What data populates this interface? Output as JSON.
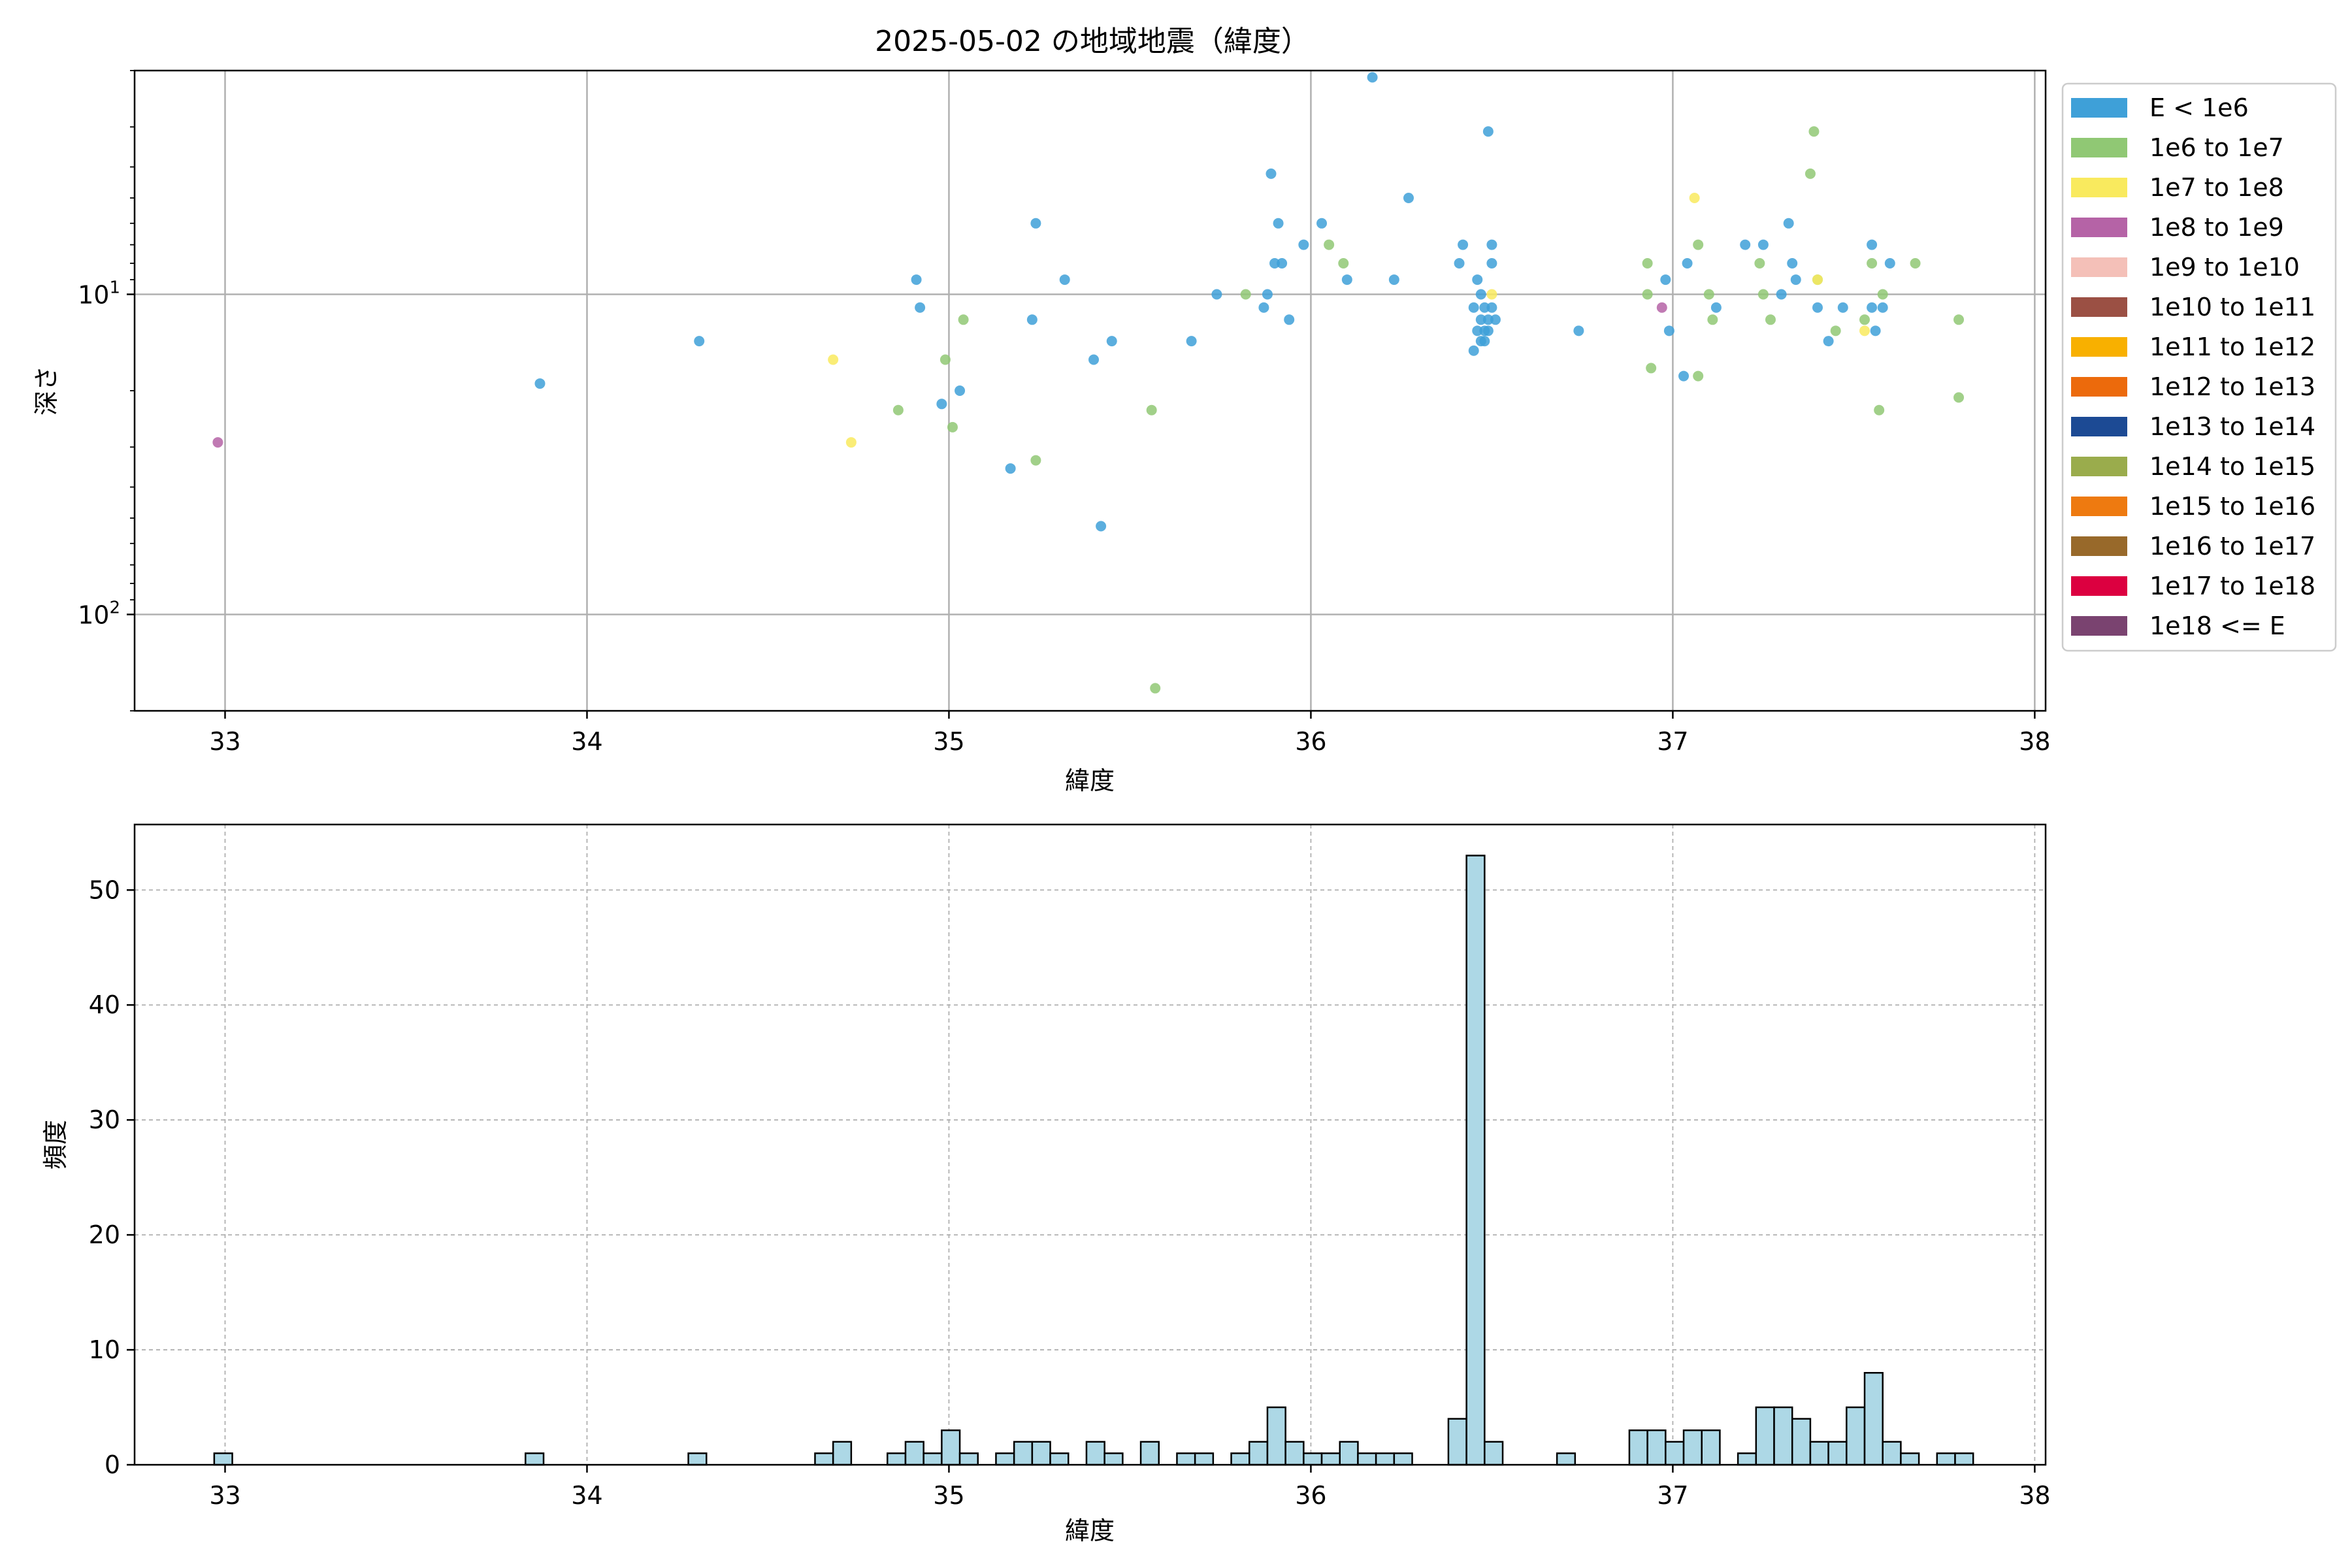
{
  "figure": {
    "title": "2025-05-02 の地域地震（緯度）"
  },
  "scatter_legend": [
    {
      "label": "E < 1e6",
      "color": "#3ea0d8"
    },
    {
      "label": "1e6 to 1e7",
      "color": "#90c874"
    },
    {
      "label": "1e7 to 1e8",
      "color": "#f9ea5e"
    },
    {
      "label": "1e8 to 1e9",
      "color": "#b563a6"
    },
    {
      "label": "1e9 to 1e10",
      "color": "#f4c0b8"
    },
    {
      "label": "1e10 to 1e11",
      "color": "#9b5044"
    },
    {
      "label": "1e11 to 1e12",
      "color": "#f8b000"
    },
    {
      "label": "1e12 to 1e13",
      "color": "#ec6a0c"
    },
    {
      "label": "1e13 to 1e14",
      "color": "#1c4a94"
    },
    {
      "label": "1e14 to 1e15",
      "color": "#9aac4c"
    },
    {
      "label": "1e15 to 1e16",
      "color": "#ee7a10"
    },
    {
      "label": "1e16 to 1e17",
      "color": "#98692a"
    },
    {
      "label": "1e17 to 1e18",
      "color": "#dc0040"
    },
    {
      "label": "1e18 <= E",
      "color": "#7a4370"
    }
  ],
  "chart_data": [
    {
      "type": "scatter",
      "title": "2025-05-02 の地域地震（緯度）",
      "xlabel": "緯度",
      "ylabel": "深さ",
      "xlim": [
        32.75,
        38.03
      ],
      "ylim_depth_inverted_log": [
        2,
        200
      ],
      "yscale": "log",
      "y_inverted": true,
      "grid": true,
      "legend_placement": "outside-right",
      "x_ticks": [
        33,
        34,
        35,
        36,
        37,
        38
      ],
      "y_ticks": [
        {
          "value": 10,
          "label": "10^1"
        },
        {
          "value": 100,
          "label": "10^2"
        }
      ],
      "series": [
        {
          "name": "E < 1e6",
          "color": "#3ea0d8",
          "points": [
            [
              33.87,
              19
            ],
            [
              34.31,
              14
            ],
            [
              34.91,
              9
            ],
            [
              34.92,
              11
            ],
            [
              34.98,
              22
            ],
            [
              35.03,
              20
            ],
            [
              35.17,
              35
            ],
            [
              35.23,
              12
            ],
            [
              35.24,
              6
            ],
            [
              35.32,
              9
            ],
            [
              35.4,
              16
            ],
            [
              35.42,
              53
            ],
            [
              35.45,
              14
            ],
            [
              35.67,
              14
            ],
            [
              35.74,
              10
            ],
            [
              35.87,
              11
            ],
            [
              35.88,
              10
            ],
            [
              35.89,
              4.2
            ],
            [
              35.9,
              8
            ],
            [
              35.91,
              6
            ],
            [
              35.92,
              8
            ],
            [
              35.94,
              12
            ],
            [
              35.98,
              7
            ],
            [
              36.03,
              6
            ],
            [
              36.1,
              9
            ],
            [
              36.17,
              2.1
            ],
            [
              36.23,
              9
            ],
            [
              36.27,
              5
            ],
            [
              36.41,
              8
            ],
            [
              36.42,
              7
            ],
            [
              36.45,
              11
            ],
            [
              36.46,
              9
            ],
            [
              36.47,
              10
            ],
            [
              36.47,
              12
            ],
            [
              36.48,
              11
            ],
            [
              36.48,
              13
            ],
            [
              36.48,
              14
            ],
            [
              36.49,
              12
            ],
            [
              36.49,
              13
            ],
            [
              36.49,
              3.1
            ],
            [
              36.5,
              7
            ],
            [
              36.5,
              8
            ],
            [
              36.5,
              11
            ],
            [
              36.51,
              12
            ],
            [
              36.45,
              15
            ],
            [
              36.46,
              13
            ],
            [
              36.47,
              14
            ],
            [
              36.74,
              13
            ],
            [
              36.98,
              9
            ],
            [
              36.99,
              13
            ],
            [
              37.03,
              18
            ],
            [
              37.04,
              8
            ],
            [
              37.12,
              11
            ],
            [
              37.2,
              7
            ],
            [
              37.25,
              7
            ],
            [
              37.3,
              10
            ],
            [
              37.32,
              6
            ],
            [
              37.33,
              8
            ],
            [
              37.34,
              9
            ],
            [
              37.4,
              11
            ],
            [
              37.43,
              14
            ],
            [
              37.47,
              11
            ],
            [
              37.55,
              7
            ],
            [
              37.55,
              11
            ],
            [
              37.56,
              13
            ],
            [
              37.58,
              11
            ],
            [
              37.6,
              8
            ]
          ]
        },
        {
          "name": "1e6 to 1e7",
          "color": "#90c874",
          "points": [
            [
              34.86,
              23
            ],
            [
              34.99,
              16
            ],
            [
              35.01,
              26
            ],
            [
              35.04,
              12
            ],
            [
              35.24,
              33
            ],
            [
              35.56,
              23
            ],
            [
              35.57,
              170
            ],
            [
              35.82,
              10
            ],
            [
              36.05,
              7
            ],
            [
              36.09,
              8
            ],
            [
              36.93,
              8
            ],
            [
              36.93,
              10
            ],
            [
              36.94,
              17
            ],
            [
              37.07,
              18
            ],
            [
              37.07,
              7
            ],
            [
              37.1,
              10
            ],
            [
              37.11,
              12
            ],
            [
              37.24,
              8
            ],
            [
              37.25,
              10
            ],
            [
              37.27,
              12
            ],
            [
              37.38,
              4.2
            ],
            [
              37.39,
              3.1
            ],
            [
              37.4,
              9
            ],
            [
              37.45,
              13
            ],
            [
              37.53,
              12
            ],
            [
              37.55,
              8
            ],
            [
              37.57,
              23
            ],
            [
              37.58,
              10
            ],
            [
              37.67,
              8
            ],
            [
              37.79,
              12
            ],
            [
              37.79,
              21
            ]
          ]
        },
        {
          "name": "1e7 to 1e8",
          "color": "#f9ea5e",
          "points": [
            [
              34.68,
              16
            ],
            [
              34.73,
              29
            ],
            [
              37.06,
              5
            ],
            [
              37.4,
              9
            ],
            [
              37.53,
              13
            ],
            [
              36.5,
              10
            ]
          ]
        },
        {
          "name": "1e8 to 1e9",
          "color": "#b563a6",
          "points": [
            [
              32.98,
              29
            ],
            [
              36.97,
              11
            ]
          ]
        }
      ]
    },
    {
      "type": "bar",
      "subtype": "histogram",
      "title": "",
      "xlabel": "緯度",
      "ylabel": "頻度",
      "xlim": [
        32.75,
        38.03
      ],
      "ylim": [
        0,
        55.7
      ],
      "grid": true,
      "grid_style": "dashed",
      "bar_color": "#add8e6",
      "x_ticks": [
        33,
        34,
        35,
        36,
        37,
        38
      ],
      "y_ticks": [
        0,
        10,
        20,
        30,
        40,
        50
      ],
      "bin_width": 0.05,
      "bins": [
        {
          "x0": 32.97,
          "count": 1
        },
        {
          "x0": 33.83,
          "count": 1
        },
        {
          "x0": 34.28,
          "count": 1
        },
        {
          "x0": 34.63,
          "count": 1
        },
        {
          "x0": 34.68,
          "count": 2
        },
        {
          "x0": 34.83,
          "count": 1
        },
        {
          "x0": 34.88,
          "count": 2
        },
        {
          "x0": 34.93,
          "count": 1
        },
        {
          "x0": 34.98,
          "count": 3
        },
        {
          "x0": 35.03,
          "count": 1
        },
        {
          "x0": 35.13,
          "count": 1
        },
        {
          "x0": 35.18,
          "count": 2
        },
        {
          "x0": 35.23,
          "count": 2
        },
        {
          "x0": 35.28,
          "count": 1
        },
        {
          "x0": 35.38,
          "count": 2
        },
        {
          "x0": 35.43,
          "count": 1
        },
        {
          "x0": 35.53,
          "count": 2
        },
        {
          "x0": 35.63,
          "count": 1
        },
        {
          "x0": 35.68,
          "count": 1
        },
        {
          "x0": 35.78,
          "count": 1
        },
        {
          "x0": 35.83,
          "count": 2
        },
        {
          "x0": 35.88,
          "count": 5
        },
        {
          "x0": 35.93,
          "count": 2
        },
        {
          "x0": 35.98,
          "count": 1
        },
        {
          "x0": 36.03,
          "count": 1
        },
        {
          "x0": 36.08,
          "count": 2
        },
        {
          "x0": 36.13,
          "count": 1
        },
        {
          "x0": 36.18,
          "count": 1
        },
        {
          "x0": 36.23,
          "count": 1
        },
        {
          "x0": 36.38,
          "count": 4
        },
        {
          "x0": 36.43,
          "count": 53
        },
        {
          "x0": 36.48,
          "count": 2
        },
        {
          "x0": 36.68,
          "count": 1
        },
        {
          "x0": 36.88,
          "count": 3
        },
        {
          "x0": 36.93,
          "count": 3
        },
        {
          "x0": 36.98,
          "count": 2
        },
        {
          "x0": 37.03,
          "count": 3
        },
        {
          "x0": 37.08,
          "count": 3
        },
        {
          "x0": 37.18,
          "count": 1
        },
        {
          "x0": 37.23,
          "count": 5
        },
        {
          "x0": 37.28,
          "count": 5
        },
        {
          "x0": 37.33,
          "count": 4
        },
        {
          "x0": 37.38,
          "count": 2
        },
        {
          "x0": 37.43,
          "count": 2
        },
        {
          "x0": 37.48,
          "count": 5
        },
        {
          "x0": 37.53,
          "count": 8
        },
        {
          "x0": 37.58,
          "count": 2
        },
        {
          "x0": 37.63,
          "count": 1
        },
        {
          "x0": 37.73,
          "count": 1
        },
        {
          "x0": 37.78,
          "count": 1
        }
      ]
    }
  ]
}
